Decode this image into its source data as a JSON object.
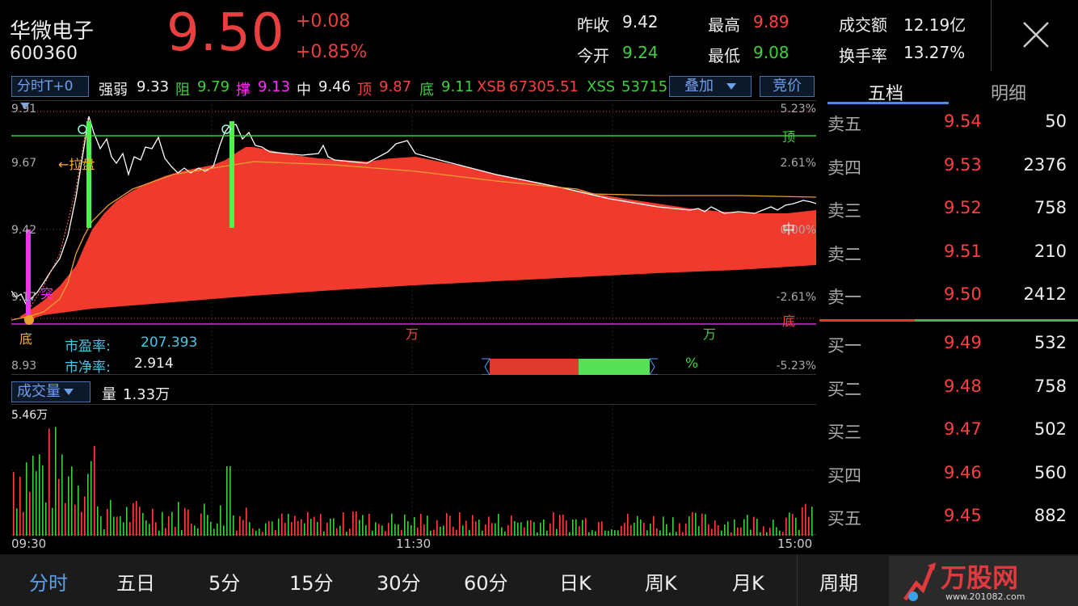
{
  "header": {
    "name": "华微电子",
    "code": "600360",
    "price": "9.50",
    "change": "+0.08",
    "change_pct": "+0.85%",
    "prev_close_label": "昨收",
    "prev_close": "9.42",
    "open_label": "今开",
    "open": "9.24",
    "high_label": "最高",
    "high": "9.89",
    "low_label": "最低",
    "low": "9.08",
    "amount_label": "成交额",
    "amount": "12.19亿",
    "turnover_label": "换手率",
    "turnover": "13.27%"
  },
  "indicator_bar": {
    "mode": "分时T+0",
    "strength_label": "强弱",
    "strength": "9.33",
    "resist_label": "阻",
    "resist": "9.79",
    "support_label": "撑",
    "support": "9.13",
    "mid_label": "中",
    "mid": "9.46",
    "top_label": "顶",
    "top": "9.87",
    "bottom_label": "底",
    "bottom": "9.11",
    "xsb_label": "XSB",
    "xsb": "67305.51",
    "xss_label": "XSS",
    "xss": "53715",
    "overlay": "叠加",
    "auction": "竞价"
  },
  "chart": {
    "y_left": [
      "9.91",
      "9.67",
      "9.42",
      "9.17",
      "8.93"
    ],
    "y_right": [
      "5.23%",
      "2.61%",
      "0.00%",
      "-2.61%",
      "-5.23%"
    ],
    "pe_label": "市盈率:",
    "pe": "207.393",
    "pb_label": "市净率:",
    "pb": "2.914",
    "marker_top": "顶",
    "marker_mid": "中",
    "marker_bottom": "底",
    "marker_wan1": "万",
    "marker_wan2": "万",
    "marker_pull": "←拉盘",
    "marker_di": "底",
    "marker_tu": "突",
    "pct_symbol": "%",
    "colors": {
      "area": "#f03a2e",
      "line": "#ffffff",
      "top_line": "#2fd12f",
      "mid_line": "#e8a030"
    }
  },
  "volume": {
    "selector": "成交量",
    "label": "量",
    "value": "1.33万",
    "max": "5.46万",
    "time_start": "09:30",
    "time_mid": "11:30",
    "time_end": "15:00"
  },
  "orderbook": {
    "tab_active": "五档",
    "tab_other": "明细",
    "asks": [
      {
        "label": "卖五",
        "price": "9.54",
        "vol": "50"
      },
      {
        "label": "卖四",
        "price": "9.53",
        "vol": "2376"
      },
      {
        "label": "卖三",
        "price": "9.52",
        "vol": "758"
      },
      {
        "label": "卖二",
        "price": "9.51",
        "vol": "210"
      },
      {
        "label": "卖一",
        "price": "9.50",
        "vol": "2412"
      }
    ],
    "bids": [
      {
        "label": "买一",
        "price": "9.49",
        "vol": "532"
      },
      {
        "label": "买二",
        "price": "9.48",
        "vol": "758"
      },
      {
        "label": "买三",
        "price": "9.47",
        "vol": "502"
      },
      {
        "label": "买四",
        "price": "9.46",
        "vol": "560"
      },
      {
        "label": "买五",
        "price": "9.45",
        "vol": "882"
      }
    ]
  },
  "nav": {
    "items": [
      "分时",
      "五日",
      "5分",
      "15分",
      "30分",
      "60分",
      "日K",
      "周K",
      "月K",
      "周期"
    ],
    "active": "分时",
    "logo_text": "万股网",
    "logo_url": "www.201082.com"
  }
}
